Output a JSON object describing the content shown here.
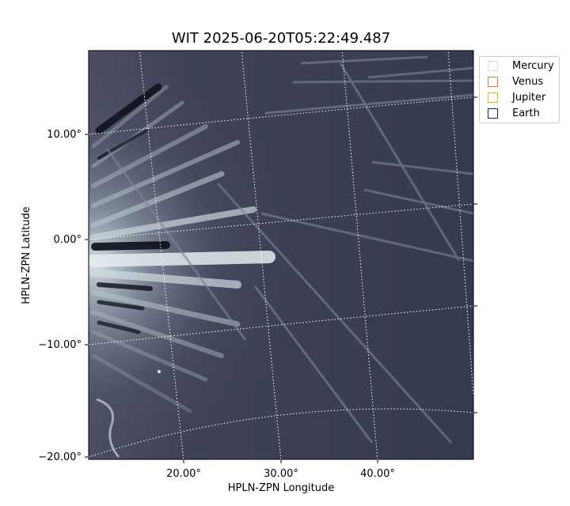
{
  "chart_data": {
    "type": "image",
    "title": "WIT 2025-06-20T05:22:49.487",
    "xlabel": "HPLN-ZPN Longitude",
    "ylabel": "HPLN-ZPN Latitude",
    "x_ticks": [
      "20.00°",
      "30.00°",
      "40.00°"
    ],
    "y_ticks": [
      "10.00°",
      "0.00°",
      "−10.00°",
      "−20.00°"
    ],
    "grid": true,
    "colormap": "bone",
    "legend": {
      "placement": "outside-top-right",
      "entries": [
        {
          "name": "Mercury",
          "color": "#dddddd"
        },
        {
          "name": "Venus",
          "color": "#e07b39"
        },
        {
          "name": "Jupiter",
          "color": "#e8b21c"
        },
        {
          "name": "Earth",
          "color": "#1a1a7a"
        }
      ]
    }
  }
}
